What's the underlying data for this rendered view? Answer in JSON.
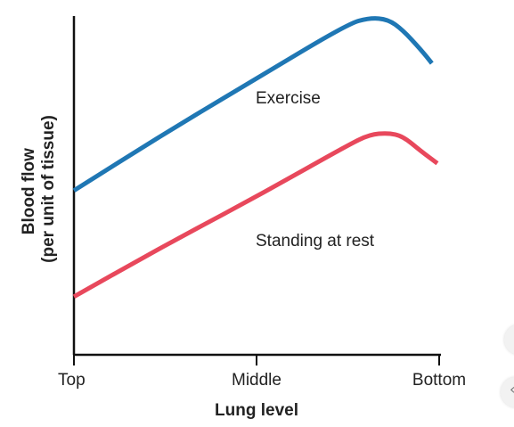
{
  "chart_data": {
    "type": "line",
    "title": "",
    "xlabel": "Lung level",
    "ylabel_lines": [
      "Blood flow",
      "(per unit of tissue)"
    ],
    "categories": [
      "Top",
      "Middle",
      "Bottom"
    ],
    "xlim": [
      0,
      2
    ],
    "ylim": [
      0,
      10
    ],
    "grid": false,
    "legend": "inline labels",
    "series": [
      {
        "name": "Exercise",
        "color": "#1f77b4",
        "x": [
          0,
          0.5,
          1.0,
          1.5,
          1.62,
          1.72,
          1.8,
          1.9,
          1.96
        ],
        "y": [
          4.3,
          6.2,
          8.0,
          9.8,
          10.0,
          9.95,
          9.6,
          8.95,
          8.5
        ]
      },
      {
        "name": "Standing at rest",
        "color": "#e8485c",
        "x": [
          0,
          0.5,
          1.0,
          1.5,
          1.62,
          1.72,
          1.8,
          1.9,
          1.99
        ],
        "y": [
          0.8,
          2.5,
          4.1,
          5.8,
          6.15,
          6.2,
          6.1,
          5.6,
          5.2
        ]
      }
    ]
  }
}
